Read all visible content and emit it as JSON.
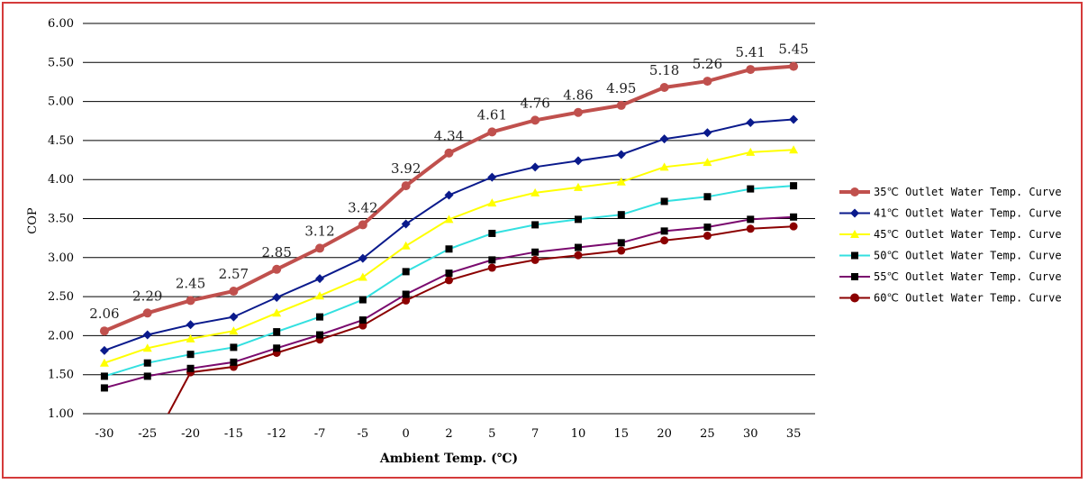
{
  "chart_data": {
    "type": "line",
    "xlabel": "Ambient Temp. (℃)",
    "ylabel": "COP",
    "categories": [
      "-30",
      "-25",
      "-20",
      "-15",
      "-12",
      "-7",
      "-5",
      "0",
      "2",
      "5",
      "7",
      "10",
      "15",
      "20",
      "25",
      "30",
      "35"
    ],
    "ylim": [
      1.0,
      6.0
    ],
    "yticks": [
      "1.00",
      "1.50",
      "2.00",
      "2.50",
      "3.00",
      "3.50",
      "4.00",
      "4.50",
      "5.00",
      "5.50",
      "6.00"
    ],
    "grid": true,
    "legend_position": "right",
    "series": [
      {
        "name": "35℃ Outlet Water Temp. Curve",
        "color": "#c0504d",
        "marker": "circle",
        "width": 4,
        "values": [
          2.06,
          2.29,
          2.45,
          2.57,
          2.85,
          3.12,
          3.42,
          3.92,
          4.34,
          4.61,
          4.76,
          4.86,
          4.95,
          5.18,
          5.26,
          5.41,
          5.45
        ],
        "labels": [
          "2.06",
          "2.29",
          "2.45",
          "2.57",
          "2.85",
          "3.12",
          "3.42",
          "3.92",
          "4.34",
          "4.61",
          "4.76",
          "4.86",
          "4.95",
          "5.18",
          "5.26",
          "5.41",
          "5.45"
        ]
      },
      {
        "name": "41℃ Outlet Water Temp. Curve",
        "color": "#0a1a8c",
        "marker": "diamond",
        "width": 2,
        "values": [
          1.81,
          2.01,
          2.14,
          2.24,
          2.49,
          2.73,
          2.99,
          3.43,
          3.8,
          4.03,
          4.16,
          4.24,
          4.32,
          4.52,
          4.6,
          4.73,
          4.77
        ]
      },
      {
        "name": "45℃ Outlet Water Temp. Curve",
        "color": "#ffff00",
        "marker": "triangle",
        "width": 2,
        "values": [
          1.65,
          1.84,
          1.96,
          2.06,
          2.29,
          2.51,
          2.75,
          3.15,
          3.49,
          3.7,
          3.83,
          3.9,
          3.97,
          4.16,
          4.22,
          4.35,
          4.38
        ]
      },
      {
        "name": "50℃ Outlet Water Temp. Curve",
        "color": "#33e0e0",
        "marker": "square",
        "width": 2,
        "values": [
          1.48,
          1.65,
          1.76,
          1.85,
          2.05,
          2.24,
          2.46,
          2.82,
          3.11,
          3.31,
          3.42,
          3.49,
          3.55,
          3.72,
          3.78,
          3.88,
          3.92
        ]
      },
      {
        "name": "55℃ Outlet Water Temp. Curve",
        "color": "#7a0a6e",
        "marker": "square",
        "width": 2,
        "values": [
          1.33,
          1.48,
          1.58,
          1.66,
          1.84,
          2.01,
          2.2,
          2.53,
          2.8,
          2.97,
          3.07,
          3.13,
          3.19,
          3.34,
          3.39,
          3.49,
          3.52
        ]
      },
      {
        "name": "60℃ Outlet Water Temp. Curve",
        "color": "#8b0000",
        "marker": "circle",
        "width": 2,
        "values": [
          null,
          0.5,
          1.53,
          1.6,
          1.78,
          1.95,
          2.13,
          2.45,
          2.71,
          2.87,
          2.97,
          3.03,
          3.09,
          3.22,
          3.28,
          3.37,
          3.4
        ]
      }
    ]
  }
}
